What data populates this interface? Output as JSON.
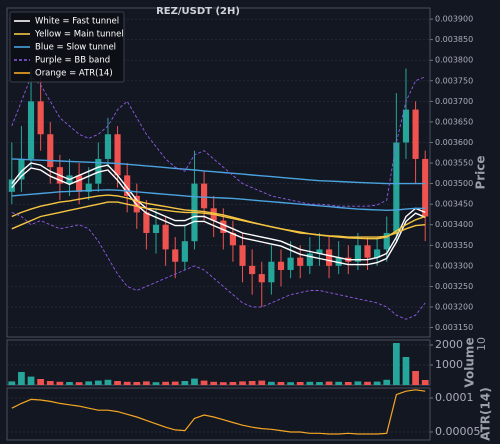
{
  "chart_data": [
    {
      "type": "candlestick",
      "title": "REZ/USDT (2H)",
      "ylabel": "Price",
      "open": [
        0.00348,
        0.00351,
        0.00356,
        0.0037,
        0.00362,
        0.00354,
        0.0035,
        0.00352,
        0.00348,
        0.0035,
        0.00356,
        0.00362,
        0.00352,
        0.00347,
        0.00343,
        0.00338,
        0.0034,
        0.00334,
        0.00331,
        0.00336,
        0.0035,
        0.00344,
        0.00341,
        0.00338,
        0.00335,
        0.0033,
        0.00328,
        0.00326,
        0.00331,
        0.00329,
        0.00332,
        0.0033,
        0.00333,
        0.00334,
        0.0033,
        0.00332,
        0.00331,
        0.00335,
        0.00332,
        0.00334,
        0.00338,
        0.0036,
        0.00368,
        0.00356
      ],
      "high": [
        0.0036,
        0.00364,
        0.00378,
        0.00376,
        0.00365,
        0.00357,
        0.00356,
        0.00355,
        0.00354,
        0.0036,
        0.00366,
        0.00364,
        0.00355,
        0.0035,
        0.00346,
        0.00344,
        0.00342,
        0.00337,
        0.0034,
        0.00358,
        0.00353,
        0.00347,
        0.00344,
        0.00341,
        0.00338,
        0.00334,
        0.00331,
        0.00335,
        0.00334,
        0.00336,
        0.00335,
        0.00337,
        0.00338,
        0.00337,
        0.00336,
        0.00335,
        0.00338,
        0.00337,
        0.00337,
        0.00342,
        0.00372,
        0.00378,
        0.0037,
        0.00358
      ],
      "low": [
        0.00345,
        0.00348,
        0.00354,
        0.00358,
        0.0035,
        0.00346,
        0.00347,
        0.00345,
        0.00346,
        0.00348,
        0.00354,
        0.00349,
        0.00343,
        0.00339,
        0.00334,
        0.00333,
        0.0033,
        0.00327,
        0.00329,
        0.00334,
        0.00341,
        0.00337,
        0.00334,
        0.00331,
        0.00326,
        0.00323,
        0.0032,
        0.00323,
        0.00325,
        0.00327,
        0.00327,
        0.00328,
        0.0033,
        0.00327,
        0.00328,
        0.00328,
        0.00329,
        0.00329,
        0.0033,
        0.00331,
        0.00336,
        0.00356,
        0.0035,
        0.00336
      ],
      "close": [
        0.00351,
        0.00356,
        0.0037,
        0.00362,
        0.00354,
        0.0035,
        0.00352,
        0.00348,
        0.0035,
        0.00356,
        0.00362,
        0.00352,
        0.00347,
        0.00343,
        0.00338,
        0.0034,
        0.00334,
        0.00331,
        0.00336,
        0.0035,
        0.00344,
        0.00341,
        0.00338,
        0.00335,
        0.0033,
        0.00328,
        0.00326,
        0.00331,
        0.00329,
        0.00332,
        0.0033,
        0.00333,
        0.00334,
        0.0033,
        0.00332,
        0.00331,
        0.00335,
        0.00332,
        0.00334,
        0.00338,
        0.0036,
        0.00368,
        0.00356,
        0.00342
      ],
      "up_color": "#26a69a",
      "down_color": "#ef5350",
      "lines": [
        {
          "color": "#ffffff",
          "style": "solid",
          "values": [
            0.0035,
            0.00353,
            0.00355,
            0.003545,
            0.00353,
            0.00352,
            0.00351,
            0.00352,
            0.00353,
            0.00354,
            0.003545,
            0.00352,
            0.00349,
            0.00346,
            0.00344,
            0.00343,
            0.00342,
            0.00341,
            0.00341,
            0.00342,
            0.00342,
            0.00341,
            0.0034,
            0.00339,
            0.00338,
            0.003375,
            0.00337,
            0.003365,
            0.00336,
            0.00335,
            0.00334,
            0.003335,
            0.00333,
            0.003325,
            0.00332,
            0.003315,
            0.003315,
            0.003315,
            0.00332,
            0.00333,
            0.00337,
            0.00342,
            0.00344,
            0.00343
          ]
        },
        {
          "color": "#ffffff",
          "style": "solid",
          "values": [
            0.00349,
            0.003518,
            0.003538,
            0.003533,
            0.003518,
            0.003508,
            0.003498,
            0.003508,
            0.003518,
            0.003528,
            0.003533,
            0.003508,
            0.003478,
            0.003448,
            0.003428,
            0.003418,
            0.003408,
            0.003398,
            0.003398,
            0.003408,
            0.003408,
            0.003398,
            0.003388,
            0.003378,
            0.003368,
            0.003363,
            0.003358,
            0.003353,
            0.003348,
            0.003338,
            0.003328,
            0.003323,
            0.003318,
            0.003313,
            0.003308,
            0.003303,
            0.003303,
            0.003303,
            0.003308,
            0.003318,
            0.003358,
            0.003408,
            0.003428,
            0.003418
          ]
        },
        {
          "color": "#f5c542",
          "style": "solid",
          "values": [
            0.00339,
            0.0034,
            0.00341,
            0.00342,
            0.003425,
            0.00343,
            0.003435,
            0.00344,
            0.003445,
            0.00345,
            0.003455,
            0.003455,
            0.00345,
            0.003445,
            0.00344,
            0.003438,
            0.003435,
            0.003432,
            0.00343,
            0.00343,
            0.003428,
            0.003425,
            0.00342,
            0.003415,
            0.00341,
            0.003405,
            0.0034,
            0.003395,
            0.00339,
            0.003385,
            0.00338,
            0.003378,
            0.003375,
            0.003373,
            0.003372,
            0.00337,
            0.00337,
            0.00337,
            0.00337,
            0.003372,
            0.00338,
            0.00339,
            0.003398,
            0.0034
          ]
        },
        {
          "color": "#f5c542",
          "style": "solid",
          "values": [
            0.00342,
            0.00343,
            0.003438,
            0.003445,
            0.00345,
            0.003455,
            0.003458,
            0.003462,
            0.003466,
            0.00347,
            0.003472,
            0.00347,
            0.003465,
            0.003458,
            0.003452,
            0.003448,
            0.003444,
            0.00344,
            0.003436,
            0.003434,
            0.003432,
            0.003428,
            0.003424,
            0.003418,
            0.003412,
            0.003406,
            0.0034,
            0.003395,
            0.00339,
            0.003386,
            0.003382,
            0.003378,
            0.003375,
            0.003372,
            0.00337,
            0.003368,
            0.003367,
            0.003366,
            0.003366,
            0.00337,
            0.003385,
            0.0034,
            0.003412,
            0.00342
          ]
        },
        {
          "color": "#4aa3df",
          "style": "solid",
          "values": [
            0.00356,
            0.003559,
            0.003558,
            0.003557,
            0.003556,
            0.003555,
            0.003554,
            0.003553,
            0.003552,
            0.003551,
            0.00355,
            0.003549,
            0.003547,
            0.003545,
            0.003543,
            0.003541,
            0.003539,
            0.003537,
            0.003535,
            0.003533,
            0.003531,
            0.003529,
            0.003527,
            0.003525,
            0.003523,
            0.003521,
            0.003519,
            0.003517,
            0.003515,
            0.003513,
            0.003511,
            0.003509,
            0.003507,
            0.003506,
            0.003505,
            0.003504,
            0.003503,
            0.003502,
            0.003501,
            0.0035,
            0.0035,
            0.0035,
            0.0035,
            0.0035
          ]
        },
        {
          "color": "#4aa3df",
          "style": "solid",
          "values": [
            0.00347,
            0.003472,
            0.003474,
            0.003476,
            0.003478,
            0.00348,
            0.003481,
            0.003482,
            0.003483,
            0.003484,
            0.003485,
            0.003484,
            0.003482,
            0.00348,
            0.003478,
            0.003476,
            0.003474,
            0.003472,
            0.00347,
            0.003468,
            0.003467,
            0.003466,
            0.003465,
            0.003464,
            0.003462,
            0.00346,
            0.003458,
            0.003456,
            0.003454,
            0.003452,
            0.00345,
            0.003448,
            0.003446,
            0.003444,
            0.003442,
            0.00344,
            0.003438,
            0.003437,
            0.003436,
            0.003435,
            0.003436,
            0.003438,
            0.00344,
            0.00344
          ]
        },
        {
          "color": "#8e5be8",
          "style": "dashed",
          "values": [
            0.00364,
            0.0037,
            0.00376,
            0.00374,
            0.0037,
            0.00366,
            0.00364,
            0.00362,
            0.00361,
            0.00362,
            0.00364,
            0.00368,
            0.0037,
            0.00366,
            0.00362,
            0.00359,
            0.00356,
            0.00354,
            0.00353,
            0.00357,
            0.00358,
            0.00356,
            0.00354,
            0.00352,
            0.0035,
            0.00349,
            0.00348,
            0.00347,
            0.003465,
            0.00346,
            0.003455,
            0.00345,
            0.00345,
            0.003448,
            0.003445,
            0.003445,
            0.003445,
            0.003445,
            0.003448,
            0.00346,
            0.0036,
            0.0037,
            0.00375,
            0.00376
          ]
        },
        {
          "color": "#8e5be8",
          "style": "dashed",
          "values": [
            0.00343,
            0.00342,
            0.0034,
            0.00341,
            0.0034,
            0.00339,
            0.003395,
            0.0034,
            0.00339,
            0.00336,
            0.00332,
            0.00328,
            0.00325,
            0.00324,
            0.00325,
            0.00326,
            0.00327,
            0.00328,
            0.00329,
            0.0033,
            0.00329,
            0.00327,
            0.00325,
            0.00323,
            0.00321,
            0.0032,
            0.0032,
            0.00321,
            0.00322,
            0.00323,
            0.003235,
            0.00324,
            0.00324,
            0.003235,
            0.00323,
            0.003225,
            0.00322,
            0.003215,
            0.00321,
            0.0032,
            0.00318,
            0.00317,
            0.00318,
            0.00321
          ]
        }
      ],
      "legend": {
        "position": "upper left",
        "items": [
          {
            "label": "White = Fast tunnel",
            "color": "#ffffff",
            "style": "solid"
          },
          {
            "label": "Yellow = Main tunnel",
            "color": "#f5c542",
            "style": "solid"
          },
          {
            "label": "Blue = Slow tunnel",
            "color": "#4aa3df",
            "style": "solid"
          },
          {
            "label": "Purple = BB band",
            "color": "#8e5be8",
            "style": "dashed"
          },
          {
            "label": "Orange = ATR(14)",
            "color": "#f5a623",
            "style": "solid"
          }
        ]
      },
      "ylim": [
        0.003127,
        0.003927
      ],
      "yticks": [
        {
          "value": 0.0039,
          "label": "0.003900"
        },
        {
          "value": 0.00385,
          "label": "0.003850"
        },
        {
          "value": 0.0038,
          "label": "0.003800"
        },
        {
          "value": 0.00375,
          "label": "0.003750"
        },
        {
          "value": 0.0037,
          "label": "0.003700"
        },
        {
          "value": 0.00365,
          "label": "0.003650"
        },
        {
          "value": 0.0036,
          "label": "0.003600"
        },
        {
          "value": 0.00355,
          "label": "0.003550"
        },
        {
          "value": 0.0035,
          "label": "0.003500"
        },
        {
          "value": 0.00345,
          "label": "0.003450"
        },
        {
          "value": 0.0034,
          "label": "0.003400"
        },
        {
          "value": 0.00335,
          "label": "0.003350"
        },
        {
          "value": 0.0033,
          "label": "0.003300"
        },
        {
          "value": 0.00325,
          "label": "0.003250"
        },
        {
          "value": 0.0032,
          "label": "0.003200"
        },
        {
          "value": 0.00315,
          "label": "0.003150"
        }
      ],
      "grid": true
    },
    {
      "type": "bar",
      "ylabel": "Volume",
      "offset_text": "10",
      "values": [
        180,
        650,
        420,
        300,
        200,
        160,
        150,
        140,
        180,
        220,
        260,
        200,
        160,
        150,
        180,
        140,
        160,
        170,
        200,
        320,
        220,
        160,
        140,
        150,
        180,
        200,
        220,
        160,
        150,
        140,
        150,
        160,
        150,
        170,
        160,
        150,
        180,
        160,
        170,
        260,
        2100,
        1400,
        700,
        250
      ],
      "ylim": [
        0,
        2250
      ],
      "yticks": [
        1000,
        2000
      ],
      "grid": true
    },
    {
      "type": "line",
      "ylabel": "ATR(14)",
      "color": "#f5a623",
      "values": [
        8.5e-05,
        9.2e-05,
        9.8e-05,
        9.7e-05,
        9.5e-05,
        9.2e-05,
        9e-05,
        8.8e-05,
        8.5e-05,
        8.2e-05,
        8.2e-05,
        8e-05,
        7.6e-05,
        7.2e-05,
        6.7e-05,
        6.2e-05,
        5.7e-05,
        5.3e-05,
        5.2e-05,
        7e-05,
        7.5e-05,
        7.2e-05,
        6.8e-05,
        6.4e-05,
        6e-05,
        5.7e-05,
        5.5e-05,
        5.4e-05,
        5.2e-05,
        5e-05,
        5e-05,
        4.8e-05,
        4.8e-05,
        4.7e-05,
        4.7e-05,
        4.8e-05,
        4.7e-05,
        4.7e-05,
        4.7e-05,
        4.8e-05,
        0.000105,
        0.00011,
        0.000112,
        0.00011
      ],
      "ylim": [
        3.82e-05,
        0.0001147
      ],
      "yticks": [
        0.0001,
        5e-05
      ],
      "grid": true
    }
  ]
}
